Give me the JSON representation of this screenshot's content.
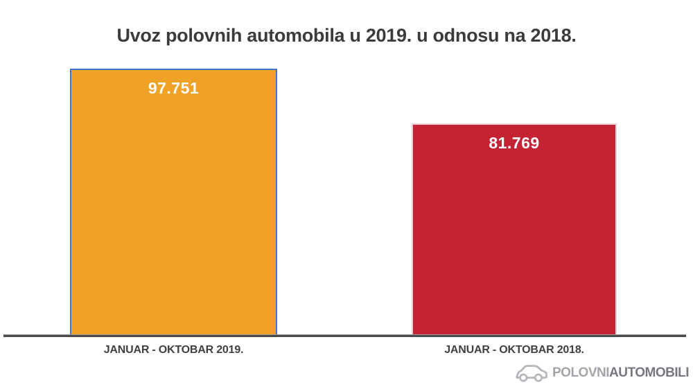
{
  "chart_data": {
    "type": "bar",
    "title": "Uvoz polovnih automobila u 2019. u odnosu na 2018.",
    "categories": [
      "JANUAR - OKTOBAR 2019.",
      "JANUAR - OKTOBAR 2018."
    ],
    "values": [
      97751,
      81769
    ],
    "series": [
      {
        "name": "JANUAR - OKTOBAR 2019.",
        "value": 97751,
        "value_label": "97.751",
        "color": "#efa226",
        "border_color": "#4472c4"
      },
      {
        "name": "JANUAR - OKTOBAR 2018.",
        "value": 81769,
        "value_label": "81.769",
        "color": "#c52234",
        "border_color": "#e9ccd3"
      }
    ],
    "xlabel": "",
    "ylabel": "",
    "ylim": [
      20000,
      100000
    ],
    "grid": false,
    "legend": false,
    "y_axis_visible": false,
    "axis_color": "#4a4a4a",
    "value_label_color": "#ffffff",
    "title_color": "#3b3b3b"
  },
  "logo": {
    "brand_first": "POLOVNI",
    "brand_second": "AUTOMOBILI",
    "icon": "car-outline-icon"
  }
}
